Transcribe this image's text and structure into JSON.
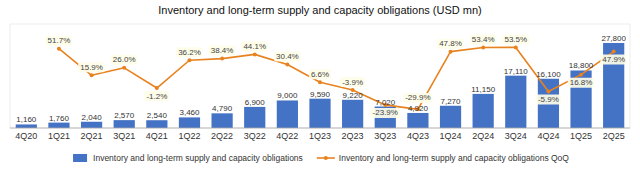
{
  "chart_data": {
    "type": "bar",
    "title": "Inventory and long-term supply and capacity obligations (USD mn)",
    "categories": [
      "4Q20",
      "1Q21",
      "2Q21",
      "3Q21",
      "4Q21",
      "1Q22",
      "2Q22",
      "3Q22",
      "4Q22",
      "1Q23",
      "2Q23",
      "3Q23",
      "4Q23",
      "1Q24",
      "2Q24",
      "3Q24",
      "4Q24",
      "1Q25",
      "2Q25"
    ],
    "series": [
      {
        "name": "Inventory and long-term supply and capacity obligations",
        "type": "bar",
        "color": "#4472c4",
        "values": [
          1160,
          1760,
          2040,
          2570,
          2540,
          3460,
          4790,
          6900,
          9000,
          9590,
          9220,
          7020,
          4920,
          7270,
          11150,
          17110,
          16100,
          18800,
          27800
        ],
        "value_labels": [
          "1,160",
          "1,760",
          "2,040",
          "2,570",
          "2,540",
          "3,460",
          "4,790",
          "6,900",
          "9,000",
          "9,590",
          "9,220",
          "7,020",
          "4,920",
          "7,270",
          "11,150",
          "17,110",
          "16,100",
          "18,800",
          "27,800"
        ]
      },
      {
        "name": "Inventory and long-term supply and capacity obligations QoQ",
        "type": "line",
        "axis": "y2",
        "color": "#e8821e",
        "marker": "circle",
        "line_style": "solid",
        "values": [
          null,
          51.7,
          15.9,
          26.0,
          -1.2,
          36.2,
          38.4,
          44.1,
          30.4,
          6.6,
          -3.9,
          -23.9,
          -29.9,
          47.8,
          53.4,
          53.5,
          -5.9,
          16.8,
          47.9
        ],
        "value_labels": [
          null,
          "51.7%",
          "15.9%",
          "26.0%",
          "-1.2%",
          "36.2%",
          "38.4%",
          "44.1%",
          "30.4%",
          "6.6%",
          "-3.9%",
          "-23.9%",
          "-29.9%",
          "47.8%",
          "53.4%",
          "53.5%",
          "-5.9%",
          "16.8%",
          "47.9%"
        ]
      }
    ],
    "ylim": [
      0,
      34000
    ],
    "y2lim": [
      -55,
      85
    ],
    "grid": false,
    "legend": "bottom",
    "data_labels": true,
    "tick_labels": "x"
  }
}
